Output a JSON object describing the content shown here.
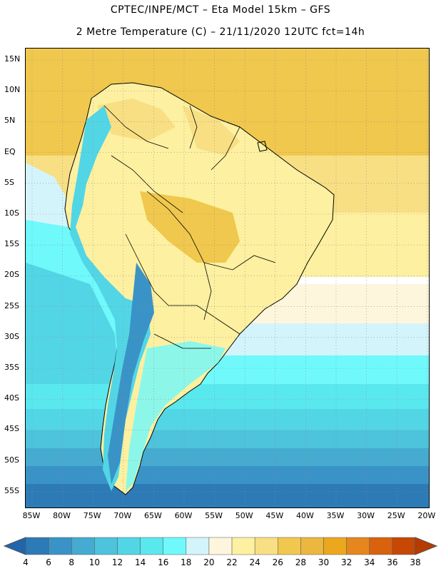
{
  "header": {
    "line1": "CPTEC/INPE/MCT –  Eta Model 15km – GFS",
    "line2": "2 Metre Temperature (C) – 21/11/2020 12UTC fct=14h"
  },
  "map": {
    "lat_labels": [
      "15N",
      "10N",
      "5N",
      "EQ",
      "5S",
      "10S",
      "15S",
      "20S",
      "25S",
      "30S",
      "35S",
      "40S",
      "45S",
      "50S",
      "55S"
    ],
    "lon_labels": [
      "85W",
      "80W",
      "75W",
      "70W",
      "65W",
      "60W",
      "55W",
      "50W",
      "45W",
      "40W",
      "35W",
      "30W",
      "25W",
      "20W"
    ]
  },
  "legend": {
    "values": [
      "4",
      "6",
      "8",
      "10",
      "12",
      "14",
      "16",
      "18",
      "20",
      "22",
      "24",
      "26",
      "28",
      "30",
      "32",
      "34",
      "36",
      "38"
    ],
    "colors": [
      "#2166ac",
      "#2c7bb6",
      "#3a93c6",
      "#45abd0",
      "#4dc3dc",
      "#52d6e6",
      "#5ae8ef",
      "#6ff9fb",
      "#d4f4fb",
      "#fdf6dc",
      "#fdf0a0",
      "#f8df84",
      "#f0c84d",
      "#ecb73f",
      "#eba81f",
      "#e5871e",
      "#d9620e",
      "#c74705",
      "#b63b00"
    ]
  }
}
